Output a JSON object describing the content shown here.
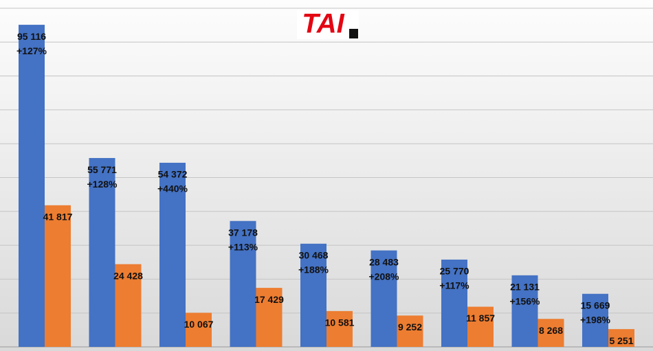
{
  "chart_data": {
    "type": "bar",
    "logo": "TAI",
    "categories": [
      null,
      null,
      null,
      null,
      null,
      null,
      null,
      null,
      null
    ],
    "series": [
      {
        "color": "#4472c4",
        "values": [
          95116,
          55771,
          54372,
          37178,
          30468,
          28483,
          25770,
          21131,
          15669
        ],
        "value_labels": [
          "95 116",
          "55 771",
          "54 372",
          "37 178",
          "30 468",
          "28 483",
          "25 770",
          "21 131",
          "15 669"
        ],
        "change_labels": [
          "+127%",
          "+128%",
          "+440%",
          "+113%",
          "+188%",
          "+208%",
          "+117%",
          "+156%",
          "+198%"
        ]
      },
      {
        "color": "#ed7d31",
        "values": [
          41817,
          24428,
          10067,
          17429,
          10581,
          9252,
          11857,
          8268,
          5251
        ],
        "value_labels": [
          "41 817",
          "24 428",
          "10 067",
          "17 429",
          "10 581",
          "9 252",
          "11 857",
          "8 268",
          "5 251"
        ]
      }
    ],
    "ylim": [
      0,
      100000
    ],
    "yticks": [
      0,
      10000,
      20000,
      30000,
      40000,
      50000,
      60000,
      70000,
      80000,
      90000,
      100000
    ],
    "grid": true
  }
}
